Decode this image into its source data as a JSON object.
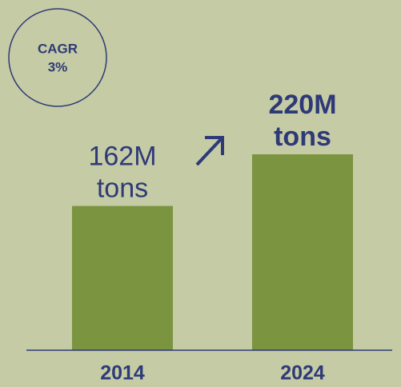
{
  "chart_data": {
    "type": "bar",
    "categories": [
      "2014",
      "2024"
    ],
    "values": [
      162,
      220
    ],
    "value_labels": [
      "162M tons",
      "220M tons"
    ],
    "color": "#7a9440",
    "annotation": [
      "CAGR",
      "3%"
    ]
  }
}
